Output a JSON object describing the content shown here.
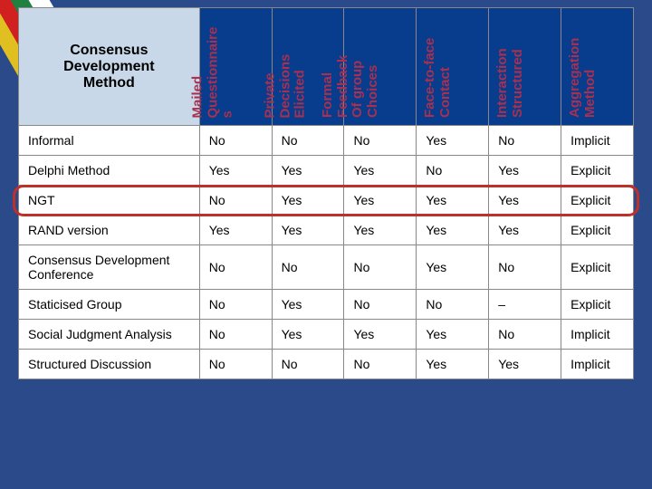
{
  "colors": {
    "header_bg": "#083c8c",
    "corner_bg": "#c8d8e8",
    "rot_text": "#a83050",
    "cell_bg": "#ffffff",
    "cell_text": "#000000",
    "border": "#888888",
    "highlight_border": "#c03028",
    "page_bg": "#2a4a8a"
  },
  "table": {
    "title": "Consensus\nDevelopment\nMethod",
    "columns": [
      "Mailed\nQuestionnaire\ns",
      "Private\nDecisions\nElicited",
      "Formal\nFeedback\nOf group\nChoices",
      "Face-to-face\nContact",
      "Interaction\nStructured",
      "Aggregation\nMethod"
    ],
    "rows": [
      {
        "method": "Informal",
        "cells": [
          "No",
          "No",
          "No",
          "Yes",
          "No",
          "Implicit"
        ],
        "highlight": false
      },
      {
        "method": "Delphi Method",
        "cells": [
          "Yes",
          "Yes",
          "Yes",
          "No",
          "Yes",
          "Explicit"
        ],
        "highlight": false
      },
      {
        "method": "NGT",
        "cells": [
          "No",
          "Yes",
          "Yes",
          "Yes",
          "Yes",
          "Explicit"
        ],
        "highlight": true
      },
      {
        "method": "RAND version",
        "cells": [
          "Yes",
          "Yes",
          "Yes",
          "Yes",
          "Yes",
          "Explicit"
        ],
        "highlight": false
      },
      {
        "method": "Consensus Development Conference",
        "cells": [
          "No",
          "No",
          "No",
          "Yes",
          "No",
          "Explicit"
        ],
        "highlight": false
      },
      {
        "method": "Staticised  Group",
        "cells": [
          "No",
          "Yes",
          "No",
          "No",
          "–",
          "Explicit"
        ],
        "highlight": false
      },
      {
        "method": "Social  Judgment Analysis",
        "cells": [
          "No",
          "Yes",
          "Yes",
          "Yes",
          "No",
          "Implicit"
        ],
        "highlight": false
      },
      {
        "method": "Structured Discussion",
        "cells": [
          "No",
          "No",
          "No",
          "Yes",
          "Yes",
          "Implicit"
        ],
        "highlight": false
      }
    ]
  },
  "highlight_row_index": 2
}
